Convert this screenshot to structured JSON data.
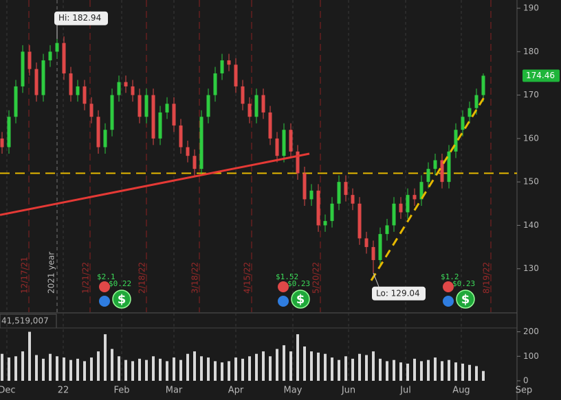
{
  "chart_data": {
    "type": "candlestick",
    "candles": [
      [
        160,
        161.5,
        156.5,
        158
      ],
      [
        158,
        166.5,
        156.5,
        165
      ],
      [
        165,
        173.5,
        163.5,
        172
      ],
      [
        172,
        181.5,
        170.5,
        180
      ],
      [
        180,
        181.5,
        174.5,
        176
      ],
      [
        176,
        177.5,
        168.5,
        170
      ],
      [
        170,
        179.5,
        168.5,
        178
      ],
      [
        178,
        181.5,
        176.5,
        180
      ],
      [
        180,
        182.94,
        178.5,
        182
      ],
      [
        182,
        183.5,
        173.5,
        175
      ],
      [
        175,
        176.5,
        168.5,
        170
      ],
      [
        170,
        173.5,
        168.5,
        172
      ],
      [
        172,
        173.5,
        166.5,
        168
      ],
      [
        168,
        169.5,
        163.5,
        165
      ],
      [
        165,
        166.5,
        156.5,
        158
      ],
      [
        158,
        163.5,
        156.5,
        162
      ],
      [
        162,
        171.5,
        160.5,
        170
      ],
      [
        170,
        174.5,
        168.5,
        173
      ],
      [
        173,
        174.5,
        170.5,
        172
      ],
      [
        172,
        173.5,
        168.5,
        170
      ],
      [
        170,
        171.5,
        163.5,
        165
      ],
      [
        165,
        171.5,
        163.5,
        170
      ],
      [
        170,
        171.5,
        158.5,
        160
      ],
      [
        160,
        167.5,
        158.5,
        166
      ],
      [
        166,
        169.5,
        164.5,
        168
      ],
      [
        168,
        169.5,
        161.5,
        163
      ],
      [
        163,
        164.5,
        156.5,
        158
      ],
      [
        158,
        159.5,
        154.5,
        156
      ],
      [
        156,
        157.5,
        151.5,
        153
      ],
      [
        153,
        166.5,
        151.5,
        165
      ],
      [
        165,
        171.5,
        163.5,
        170
      ],
      [
        170,
        176.5,
        168.5,
        175
      ],
      [
        175,
        179.5,
        173.5,
        178
      ],
      [
        178,
        179.5,
        175.5,
        177
      ],
      [
        177,
        178.5,
        170.5,
        172
      ],
      [
        172,
        173.5,
        166.5,
        168
      ],
      [
        168,
        169.5,
        163.5,
        165
      ],
      [
        165,
        171.5,
        163.5,
        170
      ],
      [
        170,
        171.5,
        164.5,
        166
      ],
      [
        166,
        167.5,
        158.5,
        160
      ],
      [
        160,
        161.5,
        154.5,
        156
      ],
      [
        156,
        163.5,
        154.5,
        162
      ],
      [
        162,
        163.5,
        155.5,
        157
      ],
      [
        157,
        158.5,
        150.5,
        152
      ],
      [
        152,
        153.5,
        144.5,
        146
      ],
      [
        146,
        149.5,
        144.5,
        148
      ],
      [
        148,
        149.5,
        138.5,
        140
      ],
      [
        140,
        142.5,
        138.5,
        141
      ],
      [
        141,
        146.5,
        139.5,
        145
      ],
      [
        145,
        151.5,
        143.5,
        150
      ],
      [
        150,
        151.5,
        145.5,
        147
      ],
      [
        147,
        148.5,
        143.5,
        145
      ],
      [
        145,
        146.5,
        135.5,
        137
      ],
      [
        137,
        138.5,
        133.5,
        135
      ],
      [
        135,
        136.5,
        129.04,
        132
      ],
      [
        132,
        139.5,
        130.5,
        138
      ],
      [
        138,
        141.5,
        136.5,
        140
      ],
      [
        140,
        146.5,
        138.5,
        145
      ],
      [
        145,
        146.5,
        141.5,
        143
      ],
      [
        143,
        148.5,
        141.5,
        147
      ],
      [
        147,
        148.5,
        144.5,
        146
      ],
      [
        146,
        151.5,
        144.5,
        150
      ],
      [
        150,
        154.5,
        148.5,
        153
      ],
      [
        153,
        156.5,
        151.5,
        155
      ],
      [
        155,
        156.5,
        148.5,
        150
      ],
      [
        150,
        158.5,
        148.5,
        157
      ],
      [
        157,
        163.5,
        155.5,
        162
      ],
      [
        162,
        166.5,
        160.5,
        165
      ],
      [
        165,
        168.5,
        163.5,
        167
      ],
      [
        167,
        171.5,
        165.5,
        170
      ],
      [
        170,
        175,
        168.5,
        174.46
      ]
    ],
    "up_color": "#2ecc40",
    "down_color": "#e04848",
    "xlim": [
      -0.3,
      74.9
    ],
    "xticks": [
      {
        "value": 0.7,
        "label": "Dec"
      },
      {
        "value": 8.9,
        "label": "22"
      },
      {
        "value": 17.4,
        "label": "Feb"
      },
      {
        "value": 25,
        "label": "Mar"
      },
      {
        "value": 34,
        "label": "Apr"
      },
      {
        "value": 42.3,
        "label": "May"
      },
      {
        "value": 50.4,
        "label": "Jun"
      },
      {
        "value": 58.7,
        "label": "Jul"
      },
      {
        "value": 66.8,
        "label": "Aug"
      },
      {
        "value": 75.9,
        "label": "Sep"
      }
    ],
    "ylim": [
      120,
      191.9
    ],
    "yticks": [
      130,
      140,
      150,
      160,
      170,
      180,
      190
    ],
    "last_price": 174.46,
    "annotations": [
      {
        "label": "Hi: 182.94",
        "value": 182.94,
        "x": 8
      },
      {
        "label": "Lo: 129.04",
        "value": 129.04,
        "x": 54
      }
    ],
    "event_lines": [
      {
        "x": 3.9,
        "label": "12/17/21"
      },
      {
        "x": 12.8,
        "label": "1/21/22"
      },
      {
        "x": 21,
        "label": "2/18/22"
      },
      {
        "x": 28.7,
        "label": "3/18/22"
      },
      {
        "x": 36.3,
        "label": "4/15/22"
      },
      {
        "x": 46.3,
        "label": "5/20/22"
      },
      {
        "x": 71.1,
        "label": "8/19/22"
      }
    ],
    "year_line": {
      "x": 8,
      "label": "2021 year"
    },
    "level": 152,
    "trendlines": [
      {
        "color": "#e53935",
        "dashed": false,
        "points": [
          [
            -0.3,
            142.4
          ],
          [
            44.7,
            156.5
          ]
        ]
      },
      {
        "color": "#e6b800",
        "dashed": true,
        "points": [
          [
            53.7,
            127.3
          ],
          [
            70.2,
            169.7
          ]
        ]
      }
    ],
    "events": [
      {
        "x": 15.2,
        "earnings": "$2.1",
        "dividend": "$0.22"
      },
      {
        "x": 41.2,
        "earnings": "$1.52",
        "dividend": "$0.23"
      },
      {
        "x": 65.2,
        "earnings": "$1.2",
        "dividend": "$0.23"
      }
    ],
    "volume": {
      "label": "41,519,007",
      "values": [
        110,
        95,
        100,
        120,
        200,
        105,
        90,
        110,
        100,
        95,
        85,
        90,
        80,
        95,
        120,
        190,
        130,
        100,
        85,
        80,
        90,
        85,
        100,
        90,
        80,
        95,
        85,
        110,
        120,
        100,
        95,
        80,
        75,
        80,
        95,
        90,
        100,
        110,
        120,
        100,
        130,
        145,
        120,
        190,
        140,
        120,
        115,
        110,
        95,
        85,
        100,
        90,
        110,
        105,
        120,
        90,
        80,
        85,
        75,
        70,
        90,
        80,
        85,
        95,
        80,
        85,
        75,
        70,
        65,
        60,
        40
      ],
      "ylim": [
        0,
        210
      ],
      "yticks": [
        0,
        100,
        200
      ],
      "color": "#d8d8d8"
    }
  }
}
